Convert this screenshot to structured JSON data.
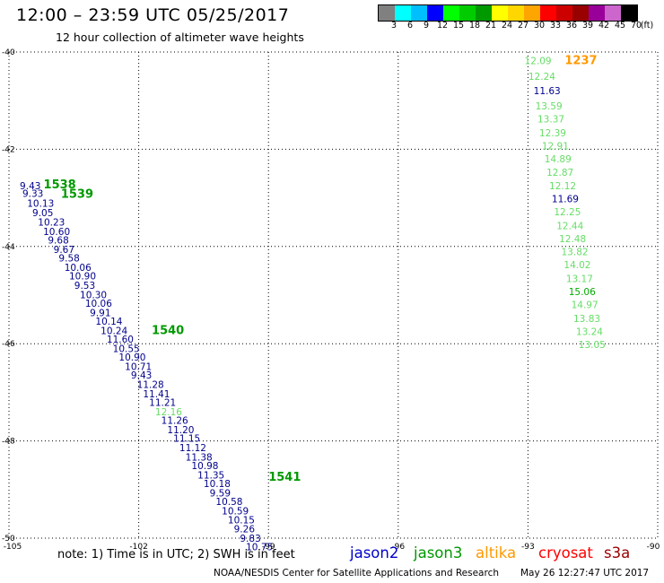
{
  "header": {
    "title": "12:00 – 23:59 UTC 05/25/2017",
    "subtitle": "12 hour collection of altimeter wave heights"
  },
  "scale": {
    "unit_label": "(ft)",
    "items": [
      {
        "label": "3",
        "color": "#808080"
      },
      {
        "label": "6",
        "color": "#00ffff"
      },
      {
        "label": "9",
        "color": "#00bfff"
      },
      {
        "label": "12",
        "color": "#0000ff"
      },
      {
        "label": "15",
        "color": "#00ff00"
      },
      {
        "label": "18",
        "color": "#00cc00"
      },
      {
        "label": "21",
        "color": "#009900"
      },
      {
        "label": "24",
        "color": "#ffff00"
      },
      {
        "label": "27",
        "color": "#ffd700"
      },
      {
        "label": "30",
        "color": "#ffa500"
      },
      {
        "label": "33",
        "color": "#ff0000"
      },
      {
        "label": "36",
        "color": "#cc0000"
      },
      {
        "label": "39",
        "color": "#990000"
      },
      {
        "label": "42",
        "color": "#990099"
      },
      {
        "label": "45",
        "color": "#cc66cc"
      },
      {
        "label": "70",
        "color": "#000000"
      }
    ]
  },
  "map": {
    "lon_ticks": [
      "-105",
      "-102",
      "-99",
      "-96",
      "-93",
      "-90"
    ],
    "lat_ticks": [
      "-40",
      "-42",
      "-44",
      "-46",
      "-48",
      "-50"
    ],
    "tracks": [
      {
        "satellite": "jason2",
        "times": [
          {
            "label": "1538",
            "lon": -104.2,
            "lat": -42.8
          },
          {
            "label": "1539",
            "lon": -103.8,
            "lat": -43.0
          },
          {
            "label": "1540",
            "lon": -101.7,
            "lat": -45.8
          },
          {
            "label": "1541",
            "lon": -99.0,
            "lat": -48.82
          }
        ],
        "points": [
          {
            "value": "9.43",
            "lon": -104.75,
            "lat": -42.82,
            "color": "#00008b"
          },
          {
            "value": "9.33",
            "lon": -104.69,
            "lat": -42.98,
            "color": "#00008b"
          },
          {
            "value": "10.13",
            "lon": -104.58,
            "lat": -43.18,
            "color": "#00008b"
          },
          {
            "value": "9.05",
            "lon": -104.46,
            "lat": -43.38,
            "color": "#00008b"
          },
          {
            "value": "10.23",
            "lon": -104.33,
            "lat": -43.57,
            "color": "#00008b"
          },
          {
            "value": "10.60",
            "lon": -104.21,
            "lat": -43.76,
            "color": "#00008b"
          },
          {
            "value": "9.68",
            "lon": -104.1,
            "lat": -43.94,
            "color": "#00008b"
          },
          {
            "value": "9.67",
            "lon": -103.97,
            "lat": -44.13,
            "color": "#00008b"
          },
          {
            "value": "9.58",
            "lon": -103.85,
            "lat": -44.31,
            "color": "#00008b"
          },
          {
            "value": "10.06",
            "lon": -103.72,
            "lat": -44.5,
            "color": "#00008b"
          },
          {
            "value": "10.90",
            "lon": -103.61,
            "lat": -44.68,
            "color": "#00008b"
          },
          {
            "value": "9.53",
            "lon": -103.49,
            "lat": -44.87,
            "color": "#00008b"
          },
          {
            "value": "10.30",
            "lon": -103.36,
            "lat": -45.06,
            "color": "#00008b"
          },
          {
            "value": "10.06",
            "lon": -103.24,
            "lat": -45.24,
            "color": "#00008b"
          },
          {
            "value": "9.91",
            "lon": -103.13,
            "lat": -45.43,
            "color": "#00008b"
          },
          {
            "value": "10.14",
            "lon": -103.0,
            "lat": -45.61,
            "color": "#00008b"
          },
          {
            "value": "10.24",
            "lon": -102.88,
            "lat": -45.8,
            "color": "#00008b"
          },
          {
            "value": "11.60",
            "lon": -102.74,
            "lat": -45.98,
            "color": "#00008b"
          },
          {
            "value": "10.55",
            "lon": -102.6,
            "lat": -46.17,
            "color": "#00008b"
          },
          {
            "value": "10.90",
            "lon": -102.46,
            "lat": -46.35,
            "color": "#00008b"
          },
          {
            "value": "10.71",
            "lon": -102.32,
            "lat": -46.54,
            "color": "#00008b"
          },
          {
            "value": "9.43",
            "lon": -102.18,
            "lat": -46.72,
            "color": "#00008b"
          },
          {
            "value": "11.28",
            "lon": -102.04,
            "lat": -46.91,
            "color": "#00008b"
          },
          {
            "value": "11.41",
            "lon": -101.9,
            "lat": -47.1,
            "color": "#00008b"
          },
          {
            "value": "11.21",
            "lon": -101.76,
            "lat": -47.28,
            "color": "#00008b"
          },
          {
            "value": "12.16",
            "lon": -101.62,
            "lat": -47.47,
            "color": "#66dd66"
          },
          {
            "value": "11.26",
            "lon": -101.48,
            "lat": -47.65,
            "color": "#00008b"
          },
          {
            "value": "11.20",
            "lon": -101.34,
            "lat": -47.84,
            "color": "#00008b"
          },
          {
            "value": "11.15",
            "lon": -101.2,
            "lat": -48.02,
            "color": "#00008b"
          },
          {
            "value": "11.12",
            "lon": -101.06,
            "lat": -48.21,
            "color": "#00008b"
          },
          {
            "value": "11.38",
            "lon": -100.92,
            "lat": -48.4,
            "color": "#00008b"
          },
          {
            "value": "10.98",
            "lon": -100.78,
            "lat": -48.58,
            "color": "#00008b"
          },
          {
            "value": "11.35",
            "lon": -100.64,
            "lat": -48.77,
            "color": "#00008b"
          },
          {
            "value": "10.18",
            "lon": -100.5,
            "lat": -48.95,
            "color": "#00008b"
          },
          {
            "value": "9.59",
            "lon": -100.36,
            "lat": -49.14,
            "color": "#00008b"
          },
          {
            "value": "10.58",
            "lon": -100.22,
            "lat": -49.32,
            "color": "#00008b"
          },
          {
            "value": "10.59",
            "lon": -100.08,
            "lat": -49.51,
            "color": "#00008b"
          },
          {
            "value": "10.15",
            "lon": -99.94,
            "lat": -49.7,
            "color": "#00008b"
          },
          {
            "value": "9.26",
            "lon": -99.8,
            "lat": -49.88,
            "color": "#00008b"
          },
          {
            "value": "9.83",
            "lon": -99.66,
            "lat": -50.07,
            "color": "#00008b"
          },
          {
            "value": "10.75",
            "lon": -99.52,
            "lat": -50.25,
            "color": "#00008b"
          }
        ]
      },
      {
        "satellite": "jason3",
        "times": [
          {
            "label": "1237",
            "lon": -92.15,
            "lat": -40.25
          }
        ],
        "points": [
          {
            "value": "12.09",
            "lon": -93.08,
            "lat": -40.25,
            "color": "#66dd66"
          },
          {
            "value": "12.24",
            "lon": -92.99,
            "lat": -40.57,
            "color": "#66dd66"
          },
          {
            "value": "11.63",
            "lon": -92.87,
            "lat": -40.87,
            "color": "#00008b"
          },
          {
            "value": "13.59",
            "lon": -92.83,
            "lat": -41.18,
            "color": "#66dd66"
          },
          {
            "value": "13.37",
            "lon": -92.78,
            "lat": -41.45,
            "color": "#66dd66"
          },
          {
            "value": "12.39",
            "lon": -92.74,
            "lat": -41.73,
            "color": "#66dd66"
          },
          {
            "value": "12.91",
            "lon": -92.68,
            "lat": -42.0,
            "color": "#66dd66"
          },
          {
            "value": "14.89",
            "lon": -92.62,
            "lat": -42.27,
            "color": "#66dd66"
          },
          {
            "value": "12.87",
            "lon": -92.57,
            "lat": -42.55,
            "color": "#66dd66"
          },
          {
            "value": "12.12",
            "lon": -92.51,
            "lat": -42.82,
            "color": "#66dd66"
          },
          {
            "value": "11.69",
            "lon": -92.45,
            "lat": -43.09,
            "color": "#00008b"
          },
          {
            "value": "12.25",
            "lon": -92.4,
            "lat": -43.36,
            "color": "#66dd66"
          },
          {
            "value": "12.44",
            "lon": -92.34,
            "lat": -43.64,
            "color": "#66dd66"
          },
          {
            "value": "12.48",
            "lon": -92.28,
            "lat": -43.91,
            "color": "#66dd66"
          },
          {
            "value": "13.82",
            "lon": -92.23,
            "lat": -44.18,
            "color": "#66dd66"
          },
          {
            "value": "14.02",
            "lon": -92.17,
            "lat": -44.45,
            "color": "#66dd66"
          },
          {
            "value": "13.17",
            "lon": -92.12,
            "lat": -44.73,
            "color": "#66dd66"
          },
          {
            "value": "15.06",
            "lon": -92.06,
            "lat": -45.0,
            "color": "#00aa00"
          },
          {
            "value": "14.97",
            "lon": -92.0,
            "lat": -45.27,
            "color": "#66dd66"
          },
          {
            "value": "13.83",
            "lon": -91.95,
            "lat": -45.55,
            "color": "#66dd66"
          },
          {
            "value": "13.24",
            "lon": -91.89,
            "lat": -45.82,
            "color": "#66dd66"
          },
          {
            "value": "13.05",
            "lon": -91.83,
            "lat": -46.09,
            "color": "#66dd66"
          }
        ]
      }
    ]
  },
  "footer": {
    "note": "note:  1) Time is in UTC;  2) SWH is in feet",
    "satellites": [
      {
        "name": "jason2",
        "color": "#0000cc"
      },
      {
        "name": "jason3",
        "color": "#009900"
      },
      {
        "name": "altika",
        "color": "#ff9900"
      },
      {
        "name": "cryosat",
        "color": "#ff0000"
      },
      {
        "name": "s3a",
        "color": "#990000"
      }
    ],
    "credit": "NOAA/NESDIS Center for Satellite Applications and Research",
    "timestamp": "May 26 12:27:47 UTC 2017"
  }
}
